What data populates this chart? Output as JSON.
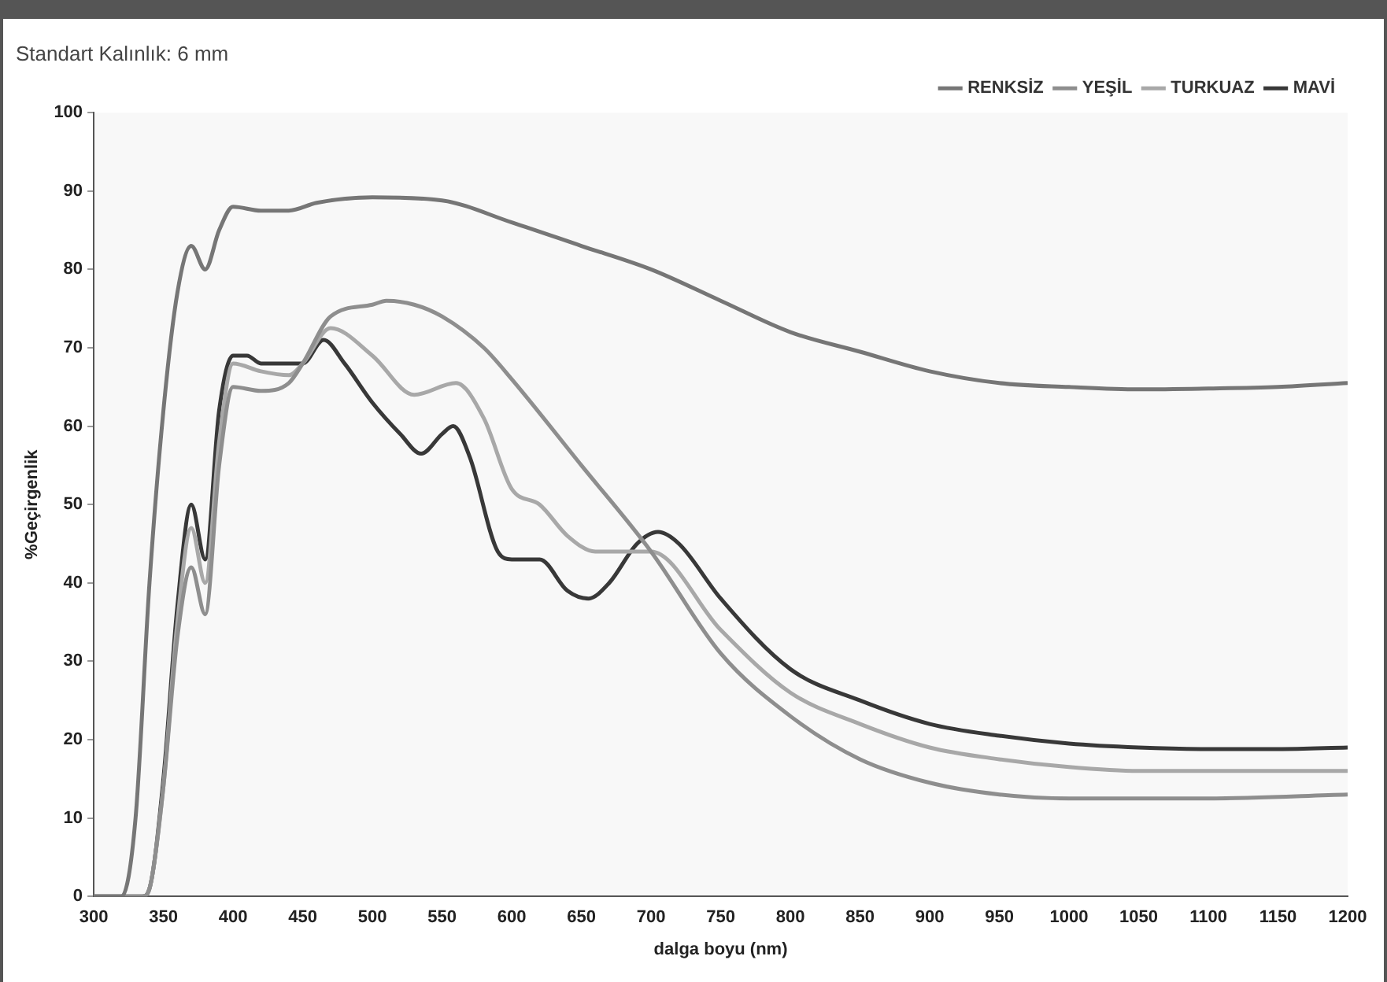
{
  "chart_data": {
    "type": "line",
    "title": "Standart Kalınlık: 6 mm",
    "xlabel": "dalga boyu (nm)",
    "ylabel": "%Geçirgenlik",
    "xlim": [
      300,
      1200
    ],
    "xticks": [
      300,
      350,
      400,
      450,
      500,
      550,
      600,
      650,
      700,
      750,
      800,
      850,
      900,
      950,
      1000,
      1050,
      1100,
      1150,
      1200
    ],
    "ylim": [
      0,
      100
    ],
    "yticks": [
      0,
      10,
      20,
      30,
      40,
      50,
      60,
      70,
      80,
      90,
      100
    ],
    "grid": false,
    "legend": "top right",
    "marker": "none",
    "line_style": "solid",
    "series": [
      {
        "name": "RENKSİZ",
        "color": "#767676",
        "x": [
          300,
          320,
          330,
          340,
          350,
          360,
          370,
          380,
          390,
          400,
          420,
          440,
          460,
          500,
          550,
          600,
          650,
          700,
          750,
          800,
          850,
          900,
          950,
          1000,
          1050,
          1100,
          1150,
          1200
        ],
        "values": [
          0,
          0,
          10,
          40,
          62,
          77,
          83,
          80,
          85,
          88,
          87.5,
          87.5,
          88.5,
          89.2,
          88.8,
          86,
          83,
          80,
          76,
          72,
          69.5,
          67,
          65.5,
          65,
          64.7,
          64.8,
          65,
          65.5
        ]
      },
      {
        "name": "YEŞİL",
        "color": "#8e8e8e",
        "x": [
          300,
          335,
          340,
          350,
          360,
          370,
          380,
          390,
          400,
          420,
          440,
          450,
          470,
          500,
          510,
          530,
          550,
          580,
          600,
          650,
          700,
          750,
          800,
          850,
          900,
          950,
          1000,
          1050,
          1100,
          1200
        ],
        "values": [
          0,
          0,
          1,
          14,
          33,
          42,
          36,
          55,
          65,
          64.5,
          65.5,
          68,
          74,
          75.5,
          76,
          75.5,
          74,
          70,
          66,
          55,
          44,
          31,
          23,
          17.5,
          14.5,
          13,
          12.5,
          12.5,
          12.5,
          13
        ]
      },
      {
        "name": "TURKUAZ",
        "color": "#a8a8a8",
        "x": [
          300,
          335,
          340,
          350,
          360,
          370,
          380,
          390,
          400,
          420,
          440,
          450,
          470,
          500,
          530,
          560,
          580,
          600,
          620,
          640,
          660,
          680,
          700,
          750,
          800,
          850,
          900,
          950,
          1000,
          1050,
          1100,
          1200
        ],
        "values": [
          0,
          0,
          1,
          14,
          35,
          47,
          40,
          58,
          68,
          67,
          66.5,
          68,
          72.5,
          69,
          64,
          65.5,
          61,
          52,
          50,
          46,
          44,
          44,
          44,
          34,
          26,
          22,
          19,
          17.5,
          16.5,
          16,
          16,
          16
        ]
      },
      {
        "name": "MAVİ",
        "color": "#383838",
        "x": [
          300,
          335,
          340,
          350,
          360,
          370,
          380,
          390,
          400,
          410,
          420,
          440,
          450,
          465,
          480,
          500,
          520,
          535,
          550,
          558,
          570,
          590,
          600,
          620,
          640,
          655,
          670,
          690,
          705,
          720,
          750,
          800,
          850,
          900,
          950,
          1000,
          1050,
          1100,
          1150,
          1200
        ],
        "values": [
          0,
          0,
          1,
          15,
          37,
          50,
          43,
          62,
          69,
          69,
          68,
          68,
          68,
          71,
          68,
          63,
          59,
          56.5,
          59,
          60,
          56,
          44,
          43,
          43,
          39,
          38,
          40,
          45,
          46.5,
          45,
          38,
          29,
          25,
          22,
          20.5,
          19.5,
          19,
          18.8,
          18.8,
          19
        ]
      }
    ]
  }
}
